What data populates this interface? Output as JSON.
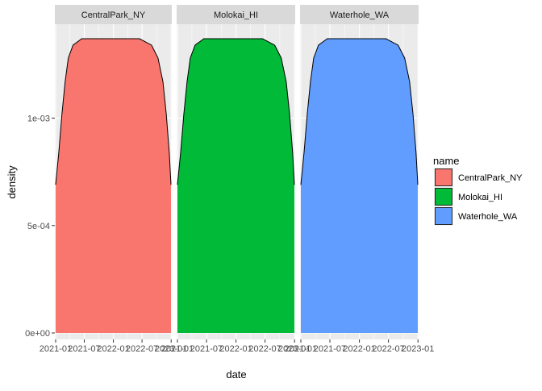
{
  "chart_data": {
    "type": "area",
    "title": "",
    "xlabel": "date",
    "ylabel": "density",
    "panels": [
      "CentralPark_NY",
      "Molokai_HI",
      "Waterhole_WA"
    ],
    "x_ticks": [
      "2021-01",
      "2021-07",
      "2022-01",
      "2022-07",
      "2023-01"
    ],
    "x_tick_dates": [
      "2021-01-01",
      "2021-07-01",
      "2022-01-01",
      "2022-07-01",
      "2023-01-01"
    ],
    "y_ticks": [
      {
        "value": 0,
        "label": "0e+00"
      },
      {
        "value": 0.0005,
        "label": "5e-04"
      },
      {
        "value": 0.001,
        "label": "1e-03"
      }
    ],
    "ylim": [
      0,
      0.00137
    ],
    "xlim": [
      "2020-12-27",
      "2023-01-05"
    ],
    "grid": true,
    "legend": {
      "title": "name",
      "position": "right",
      "entries": [
        "CentralPark_NY",
        "Molokai_HI",
        "Waterhole_WA"
      ]
    },
    "series": [
      {
        "name": "CentralPark_NY",
        "color": "#F8766D",
        "x": [
          "2021-01-01",
          "2021-01-21",
          "2021-02-10",
          "2021-03-02",
          "2021-03-22",
          "2021-04-21",
          "2021-06-15",
          "2022-06-15",
          "2022-08-30",
          "2022-10-10",
          "2022-11-10",
          "2022-12-01",
          "2022-12-20",
          "2022-12-31"
        ],
        "values": [
          0.00069,
          0.00084,
          0.00102,
          0.00117,
          0.00128,
          0.00134,
          0.00137,
          0.00137,
          0.00134,
          0.00128,
          0.00117,
          0.00102,
          0.00084,
          0.00069
        ]
      },
      {
        "name": "Molokai_HI",
        "color": "#00BA38",
        "x": [
          "2021-01-01",
          "2021-01-21",
          "2021-02-10",
          "2021-03-02",
          "2021-03-22",
          "2021-04-21",
          "2021-06-15",
          "2022-06-15",
          "2022-08-30",
          "2022-10-10",
          "2022-11-10",
          "2022-12-01",
          "2022-12-20",
          "2022-12-31"
        ],
        "values": [
          0.00069,
          0.00084,
          0.00102,
          0.00117,
          0.00128,
          0.00134,
          0.00137,
          0.00137,
          0.00134,
          0.00128,
          0.00117,
          0.00102,
          0.00084,
          0.00069
        ]
      },
      {
        "name": "Waterhole_WA",
        "color": "#619CFF",
        "x": [
          "2021-01-01",
          "2021-01-21",
          "2021-02-10",
          "2021-03-02",
          "2021-03-22",
          "2021-04-21",
          "2021-06-15",
          "2022-06-15",
          "2022-08-30",
          "2022-10-10",
          "2022-11-10",
          "2022-12-01",
          "2022-12-20",
          "2022-12-31"
        ],
        "values": [
          0.00069,
          0.00084,
          0.00102,
          0.00117,
          0.00128,
          0.00134,
          0.00137,
          0.00137,
          0.00134,
          0.00128,
          0.00117,
          0.00102,
          0.00084,
          0.00069
        ]
      }
    ]
  },
  "colors": {
    "panel_bg": "#EBEBEB",
    "strip_bg": "#D9D9D9",
    "grid": "#FFFFFF",
    "text": "#4D4D4D",
    "outline": "#000000"
  }
}
